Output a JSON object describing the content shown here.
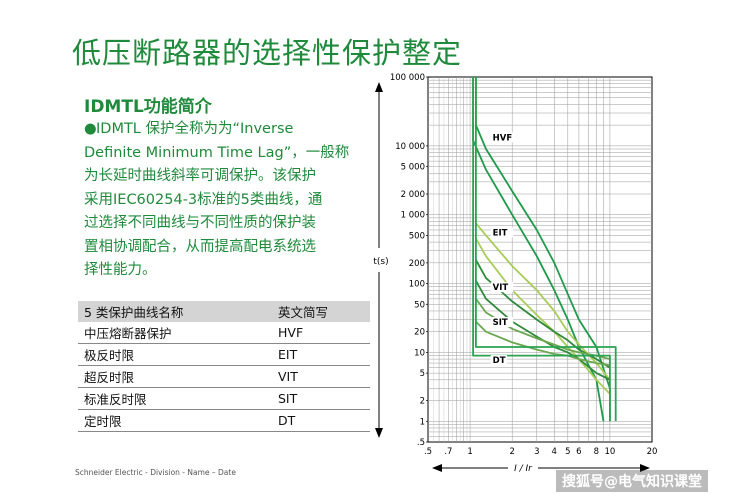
{
  "slide": {
    "title": "低压断路器的选择性保护整定",
    "subtitle": "IDMTL功能简介",
    "paragraph_lines": [
      "IDMTL 保护全称为为“Inverse",
      "Definite Minimum Time Lag”，一般称",
      "为长延时曲线斜率可调保护。该保护",
      "采用IEC60254-3标准的5类曲线，通",
      "过选择不同曲线与不同性质的保护装",
      "置相协调配合，从而提高配电系统选",
      "择性能力。"
    ],
    "footer": "Schneider Electric - Division - Name – Date",
    "watermark": "搜狐号@电气知识课堂"
  },
  "table": {
    "headers": [
      "5 类保护曲线名称",
      "英文简写"
    ],
    "rows": [
      [
        "中压熔断器保护",
        "HVF"
      ],
      [
        "极反时限",
        "EIT"
      ],
      [
        "超反时限",
        "VIT"
      ],
      [
        "标准反时限",
        "SIT"
      ],
      [
        "定时限",
        "DT"
      ]
    ]
  },
  "chart_data": {
    "type": "line",
    "ylabel": "t(s)",
    "xlabel": "I / Ir",
    "x_scale": "log",
    "y_scale": "log",
    "xlim": [
      0.5,
      20
    ],
    "ylim": [
      0.5,
      100000
    ],
    "x_ticks": [
      {
        "v": 0.5,
        "label": ".5"
      },
      {
        "v": 0.7,
        "label": ".7"
      },
      {
        "v": 1,
        "label": "1"
      },
      {
        "v": 2,
        "label": "2"
      },
      {
        "v": 3,
        "label": "3"
      },
      {
        "v": 4,
        "label": "4"
      },
      {
        "v": 5,
        "label": "5"
      },
      {
        "v": 6,
        "label": "6"
      },
      {
        "v": 8,
        "label": "8"
      },
      {
        "v": 10,
        "label": "10"
      },
      {
        "v": 20,
        "label": "20"
      }
    ],
    "y_ticks": [
      {
        "v": 100000,
        "label": "100 000"
      },
      {
        "v": 10000,
        "label": "10 000"
      },
      {
        "v": 5000,
        "label": "5 000"
      },
      {
        "v": 2000,
        "label": "2 000"
      },
      {
        "v": 1000,
        "label": "1 000"
      },
      {
        "v": 500,
        "label": "500"
      },
      {
        "v": 200,
        "label": "200"
      },
      {
        "v": 100,
        "label": "100"
      },
      {
        "v": 50,
        "label": "50"
      },
      {
        "v": 20,
        "label": "20"
      },
      {
        "v": 10,
        "label": "10"
      },
      {
        "v": 5,
        "label": "5"
      },
      {
        "v": 2,
        "label": "2"
      },
      {
        "v": 1,
        "label": "1"
      },
      {
        "v": 0.5,
        "label": ".5"
      }
    ],
    "grid": true,
    "series": [
      {
        "name": "HVF",
        "color": "#1e9a4a",
        "label_at": [
          1.45,
          12000
        ],
        "upper": [
          [
            1.1,
            100000
          ],
          [
            1.1,
            20000
          ],
          [
            1.3,
            9000
          ],
          [
            2,
            2200
          ],
          [
            3,
            600
          ],
          [
            4,
            200
          ],
          [
            5,
            70
          ],
          [
            6,
            30
          ],
          [
            8,
            12
          ],
          [
            10,
            3
          ],
          [
            10,
            1
          ]
        ],
        "lower": [
          [
            1.05,
            100000
          ],
          [
            1.05,
            12000
          ],
          [
            1.3,
            4500
          ],
          [
            2,
            1000
          ],
          [
            3,
            250
          ],
          [
            4,
            80
          ],
          [
            5,
            30
          ],
          [
            6,
            12
          ],
          [
            8,
            4
          ],
          [
            9,
            1
          ]
        ]
      },
      {
        "name": "EIT",
        "color": "#a8cc58",
        "label_at": [
          1.45,
          500
        ],
        "upper": [
          [
            1.1,
            750
          ],
          [
            1.3,
            500
          ],
          [
            2,
            180
          ],
          [
            3,
            80
          ],
          [
            4,
            40
          ],
          [
            5,
            20
          ],
          [
            6,
            13
          ],
          [
            8,
            7
          ],
          [
            10,
            4
          ]
        ],
        "lower": [
          [
            1.1,
            450
          ],
          [
            1.3,
            250
          ],
          [
            2,
            80
          ],
          [
            3,
            35
          ],
          [
            4,
            20
          ],
          [
            5,
            12
          ],
          [
            6,
            8
          ],
          [
            8,
            4
          ],
          [
            10,
            2.5
          ]
        ]
      },
      {
        "name": "VIT",
        "color": "#2f8a3a",
        "label_at": [
          1.45,
          80
        ],
        "upper": [
          [
            1.1,
            220
          ],
          [
            1.3,
            120
          ],
          [
            2,
            55
          ],
          [
            3,
            30
          ],
          [
            4,
            20
          ],
          [
            5,
            15
          ],
          [
            6,
            11
          ],
          [
            8,
            8
          ],
          [
            10,
            6
          ]
        ],
        "lower": [
          [
            1.1,
            110
          ],
          [
            1.3,
            60
          ],
          [
            2,
            28
          ],
          [
            3,
            17
          ],
          [
            4,
            12
          ],
          [
            5,
            10
          ],
          [
            6,
            8
          ],
          [
            8,
            5
          ],
          [
            10,
            4
          ]
        ]
      },
      {
        "name": "SIT",
        "color": "#6aa84f",
        "label_at": [
          1.45,
          25
        ],
        "upper": [
          [
            1.1,
            60
          ],
          [
            1.3,
            38
          ],
          [
            2,
            22
          ],
          [
            3,
            16
          ],
          [
            4,
            13
          ],
          [
            5,
            11
          ],
          [
            6,
            10
          ],
          [
            8,
            9
          ],
          [
            10,
            8
          ]
        ],
        "lower": [
          [
            1.1,
            28
          ],
          [
            1.3,
            20
          ],
          [
            2,
            14
          ],
          [
            3,
            11
          ],
          [
            4,
            9.5
          ],
          [
            5,
            9
          ],
          [
            6,
            8
          ],
          [
            8,
            7
          ],
          [
            10,
            6.5
          ]
        ]
      },
      {
        "name": "DT",
        "color": "#2aa252",
        "label_at": [
          1.45,
          7
        ],
        "upper": [
          [
            1.1,
            100000
          ],
          [
            1.1,
            12
          ],
          [
            11,
            12
          ],
          [
            11,
            1
          ]
        ],
        "lower": [
          [
            1.05,
            100000
          ],
          [
            1.05,
            9
          ],
          [
            10,
            9
          ],
          [
            10,
            1
          ]
        ]
      }
    ]
  }
}
